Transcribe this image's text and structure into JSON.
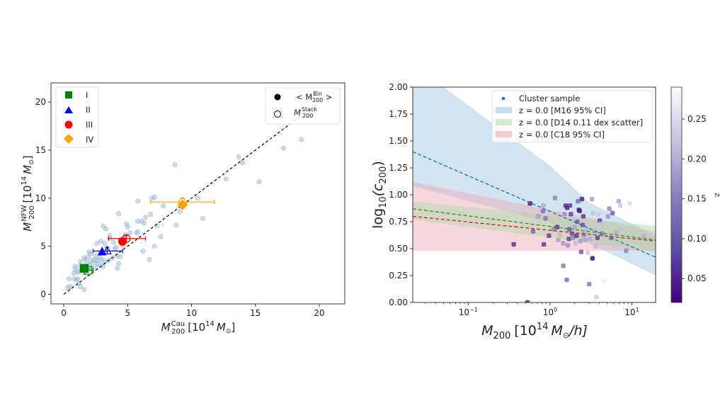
{
  "chart_data": [
    {
      "type": "scatter",
      "id": "mass-comparison",
      "xlabel": "M_200^Cau [10^14 M_sun]",
      "xlabel_parts": {
        "base": "M",
        "sup": "Cau",
        "sub": "200",
        "rest": "[10",
        "exp": "14",
        "unit": "M",
        "unit_sub": "⊙",
        "close": "]"
      },
      "ylabel": "M_200^NFW [10^14 M_sun]",
      "ylabel_parts": {
        "base": "M",
        "sup": "NFW",
        "sub": "200",
        "rest": "[10",
        "exp": "14",
        "unit": "M",
        "unit_sub": "⊙",
        "close": "]"
      },
      "xlim": [
        -1,
        22
      ],
      "ylim": [
        -1,
        22
      ],
      "xticks": [
        0,
        5,
        10,
        15,
        20
      ],
      "yticks": [
        0,
        5,
        10,
        15,
        20
      ],
      "xticklabels": [
        "0",
        "5",
        "10",
        "15",
        "20"
      ],
      "yticklabels": [
        "0",
        "5",
        "10",
        "15",
        "20"
      ],
      "grid": false,
      "one_to_one_line": {
        "x": [
          0,
          20
        ],
        "y": [
          0,
          20
        ],
        "style": "dashed",
        "color": "#000000"
      },
      "sample_color": "#9fbcd6",
      "sample_points": [
        [
          0.3,
          0.7
        ],
        [
          0.5,
          0.8
        ],
        [
          0.4,
          1.6
        ],
        [
          0.8,
          1.6
        ],
        [
          1.0,
          1.5
        ],
        [
          1.2,
          1.1
        ],
        [
          1.3,
          0.8
        ],
        [
          1.6,
          0.5
        ],
        [
          1.1,
          1.6
        ],
        [
          0.8,
          2.2
        ],
        [
          0.9,
          2.6
        ],
        [
          1.1,
          2.3
        ],
        [
          0.9,
          2.9
        ],
        [
          1.2,
          2.4
        ],
        [
          1.3,
          3.0
        ],
        [
          1.4,
          2.6
        ],
        [
          1.6,
          2.2
        ],
        [
          1.7,
          2.8
        ],
        [
          1.3,
          3.4
        ],
        [
          1.6,
          3.8
        ],
        [
          1.7,
          3.6
        ],
        [
          1.8,
          3.2
        ],
        [
          1.9,
          2.5
        ],
        [
          2.0,
          3.0
        ],
        [
          2.1,
          3.5
        ],
        [
          2.2,
          2.7
        ],
        [
          2.3,
          3.3
        ],
        [
          2.4,
          3.6
        ],
        [
          2.5,
          2.9
        ],
        [
          2.6,
          3.5
        ],
        [
          2.7,
          3.2
        ],
        [
          2.8,
          3.8
        ],
        [
          2.9,
          3.0
        ],
        [
          3.0,
          3.6
        ],
        [
          3.1,
          2.9
        ],
        [
          3.2,
          3.4
        ],
        [
          1.9,
          3.9
        ],
        [
          2.0,
          4.4
        ],
        [
          2.1,
          4.2
        ],
        [
          2.5,
          4.0
        ],
        [
          2.6,
          5.3
        ],
        [
          2.9,
          5.5
        ],
        [
          3.2,
          5.3
        ],
        [
          3.6,
          6.1
        ],
        [
          3.6,
          5.8
        ],
        [
          3.9,
          5.4
        ],
        [
          4.0,
          4.7
        ],
        [
          4.1,
          4.9
        ],
        [
          4.2,
          4.0
        ],
        [
          4.3,
          3.2
        ],
        [
          4.2,
          2.7
        ],
        [
          4.4,
          3.9
        ],
        [
          3.8,
          3.8
        ],
        [
          3.5,
          3.5
        ],
        [
          4.6,
          5.1
        ],
        [
          4.7,
          5.8
        ],
        [
          4.8,
          6.2
        ],
        [
          5.2,
          6.4
        ],
        [
          5.7,
          6.4
        ],
        [
          5.8,
          6.5
        ],
        [
          3.1,
          7.1
        ],
        [
          3.3,
          6.8
        ],
        [
          4.3,
          8.4
        ],
        [
          4.9,
          7.3
        ],
        [
          5.0,
          7.0
        ],
        [
          5.8,
          9.7
        ],
        [
          5.8,
          7.6
        ],
        [
          6.1,
          7.6
        ],
        [
          6.3,
          7.4
        ],
        [
          6.2,
          4.5
        ],
        [
          6.4,
          8.0
        ],
        [
          6.7,
          3.6
        ],
        [
          6.8,
          8.3
        ],
        [
          6.9,
          10.0
        ],
        [
          7.1,
          10.1
        ],
        [
          7.1,
          5.0
        ],
        [
          7.3,
          7.1
        ],
        [
          7.6,
          6.0
        ],
        [
          7.8,
          9.2
        ],
        [
          8.7,
          13.5
        ],
        [
          8.8,
          7.2
        ],
        [
          9.1,
          8.6
        ],
        [
          10.5,
          10.0
        ],
        [
          10.9,
          7.9
        ],
        [
          12.7,
          12.0
        ],
        [
          13.7,
          14.3
        ],
        [
          14.0,
          13.7
        ],
        [
          15.3,
          11.7
        ],
        [
          17.2,
          15.2
        ],
        [
          18.6,
          16.1
        ]
      ],
      "bins": [
        {
          "name": "I",
          "color": "#008000",
          "marker": "square",
          "bin_mean": {
            "x": 1.6,
            "y": 2.7
          },
          "stack": {
            "x": 1.9,
            "y": 2.5,
            "xerr": [
              0.3,
              0.4
            ],
            "yerr": [
              0.2,
              0.2
            ]
          }
        },
        {
          "name": "II",
          "color": "#0000ff",
          "marker": "triangle",
          "bin_mean": {
            "x": 3.0,
            "y": 4.4
          },
          "stack": {
            "x": 3.4,
            "y": 4.5,
            "xerr": [
              1.1,
              1.2
            ],
            "yerr": [
              0.3,
              0.4
            ]
          }
        },
        {
          "name": "III",
          "color": "#ff0000",
          "marker": "circle",
          "bin_mean": {
            "x": 4.6,
            "y": 5.5
          },
          "stack": {
            "x": 4.9,
            "y": 5.8,
            "xerr": [
              1.4,
              1.5
            ],
            "yerr": [
              0.3,
              0.3
            ]
          }
        },
        {
          "name": "IV",
          "color": "#ffa500",
          "marker": "diamond",
          "bin_mean": {
            "x": 9.3,
            "y": 9.3
          },
          "stack": {
            "x": 9.3,
            "y": 9.6,
            "xerr": [
              2.5,
              2.5
            ],
            "yerr": [
              0.3,
              0.4
            ]
          }
        }
      ],
      "legend_bins": {
        "position": "top-left",
        "entries": [
          "I",
          "II",
          "III",
          "IV"
        ]
      },
      "legend_markers": {
        "position": "top-right",
        "entries": [
          {
            "label_base": "< M",
            "sup": "Bin",
            "sub": "200",
            "suffix": " >",
            "style": "filled"
          },
          {
            "label_base": "M",
            "sup": "Stack",
            "sub": "200",
            "suffix": "",
            "style": "open"
          }
        ]
      }
    },
    {
      "type": "scatter",
      "id": "concentration-mass",
      "xscale": "log",
      "xlabel": "M_200 [10^14 M_sun/h]",
      "xlabel_parts": {
        "base": "M",
        "sub": "200",
        "rest": "[10",
        "exp": "14",
        "unit": "M",
        "unit_sub": "⊙",
        "close": "/h]"
      },
      "ylabel": "log10(c_200)",
      "ylabel_parts": {
        "base": "log",
        "sub1": "10",
        "open": "(c",
        "sub2": "200",
        "close": ")"
      },
      "xlim": [
        0.021,
        19.5
      ],
      "ylim": [
        0.0,
        2.0
      ],
      "xticks": [
        0.1,
        1,
        10
      ],
      "xticklabels": [
        {
          "b": "10",
          "e": "−1"
        },
        {
          "b": "10",
          "e": "0"
        },
        {
          "b": "10",
          "e": "1"
        }
      ],
      "yticks": [
        0.0,
        0.25,
        0.5,
        0.75,
        1.0,
        1.25,
        1.5,
        1.75,
        2.0
      ],
      "yticklabels": [
        "0.00",
        "0.25",
        "0.50",
        "0.75",
        "1.00",
        "1.25",
        "1.50",
        "1.75",
        "2.00"
      ],
      "grid": false,
      "legend": {
        "position": "top-right",
        "entries": [
          {
            "label": "Cluster sample",
            "kind": "marker",
            "color": "#1f77b4"
          },
          {
            "label": "z = 0.0 [M16 95% CI]",
            "kind": "band",
            "color": "#aecde6"
          },
          {
            "label": "z = 0.0 [D14 0.11 dex scatter]",
            "kind": "band",
            "color": "#bfe3bf"
          },
          {
            "label": "z = 0.0 [C18 95% CI]",
            "kind": "band",
            "color": "#f2b8c2"
          }
        ]
      },
      "bands": [
        {
          "name": "M16 95% CI",
          "color": "#b4d2e8",
          "opacity": 0.6,
          "x": [
            0.021,
            19.5
          ],
          "lower": [
            1.08,
            0.25
          ],
          "upper": [
            2.6,
            0.62
          ],
          "lower_mid": [
            [
              0.021,
              1.08
            ],
            [
              1.0,
              0.74
            ],
            [
              3.0,
              0.55
            ],
            [
              19.5,
              0.25
            ]
          ],
          "upper_mid": [
            [
              0.021,
              2.6
            ],
            [
              0.05,
              2.0
            ],
            [
              1.0,
              1.27
            ],
            [
              3.0,
              0.93
            ],
            [
              19.5,
              0.62
            ]
          ]
        },
        {
          "name": "C18 95% CI",
          "color": "#eda6b4",
          "opacity": 0.45,
          "x": [
            0.021,
            19.5
          ],
          "lower": [
            0.48,
            0.48
          ],
          "upper": [
            1.12,
            0.66
          ]
        },
        {
          "name": "D14 0.11 dex scatter",
          "color": "#a9d6a4",
          "opacity": 0.45,
          "x": [
            0.021,
            19.5
          ],
          "lower": [
            0.77,
            0.47
          ],
          "upper": [
            0.94,
            0.71
          ]
        }
      ],
      "lines": [
        {
          "name": "M16",
          "color": "#1f77b4",
          "style": "dashed",
          "x": [
            0.021,
            19.5
          ],
          "y": [
            1.4,
            0.42
          ]
        },
        {
          "name": "D14",
          "color": "#2ca02c",
          "style": "dashed",
          "x": [
            0.021,
            19.5
          ],
          "y": [
            0.87,
            0.58
          ]
        },
        {
          "name": "C18",
          "color": "#d62728",
          "style": "dashed",
          "x": [
            0.021,
            19.5
          ],
          "y": [
            0.8,
            0.57
          ]
        }
      ],
      "colorbar": {
        "label": "z",
        "range": [
          0.02,
          0.29
        ],
        "ticks": [
          0.05,
          0.1,
          0.15,
          0.2,
          0.25
        ],
        "ticklabels": [
          "0.05",
          "0.10",
          "0.15",
          "0.20",
          "0.25"
        ],
        "cmap_low": "#3f007d",
        "cmap_mid": "#9e9ac8",
        "cmap_high": "#fcfbfd"
      },
      "points": [
        {
          "m": 0.53,
          "c": 0.0,
          "z": 0.05
        },
        {
          "m": 0.36,
          "c": 0.54,
          "z": 0.06
        },
        {
          "m": 0.57,
          "c": 0.92,
          "z": 0.04
        },
        {
          "m": 0.62,
          "c": 0.66,
          "z": 0.11
        },
        {
          "m": 0.72,
          "c": 0.8,
          "z": 0.16
        },
        {
          "m": 0.83,
          "c": 0.9,
          "z": 0.18
        },
        {
          "m": 0.82,
          "c": 0.85,
          "z": 0.12
        },
        {
          "m": 0.84,
          "c": 0.54,
          "z": 0.07
        },
        {
          "m": 0.88,
          "c": 0.78,
          "z": 0.12
        },
        {
          "m": 0.97,
          "c": 0.62,
          "z": 0.08
        },
        {
          "m": 1.1,
          "c": 0.68,
          "z": 0.14
        },
        {
          "m": 1.15,
          "c": 0.97,
          "z": 0.14
        },
        {
          "m": 1.22,
          "c": 0.7,
          "z": 0.06
        },
        {
          "m": 1.26,
          "c": 0.58,
          "z": 0.17
        },
        {
          "m": 1.32,
          "c": 0.63,
          "z": 0.2
        },
        {
          "m": 1.45,
          "c": 0.34,
          "z": 0.13
        },
        {
          "m": 1.45,
          "c": 0.55,
          "z": 0.16
        },
        {
          "m": 1.5,
          "c": 0.82,
          "z": 0.15
        },
        {
          "m": 1.55,
          "c": 0.9,
          "z": 0.07
        },
        {
          "m": 1.6,
          "c": 0.21,
          "z": 0.12
        },
        {
          "m": 1.62,
          "c": 0.88,
          "z": 0.05
        },
        {
          "m": 1.65,
          "c": 0.53,
          "z": 0.15
        },
        {
          "m": 1.7,
          "c": 0.59,
          "z": 0.08
        },
        {
          "m": 1.72,
          "c": 0.68,
          "z": 0.1
        },
        {
          "m": 1.75,
          "c": 0.9,
          "z": 0.07
        },
        {
          "m": 1.8,
          "c": 0.82,
          "z": 0.08
        },
        {
          "m": 1.85,
          "c": 0.64,
          "z": 0.09
        },
        {
          "m": 1.9,
          "c": 0.6,
          "z": 0.14
        },
        {
          "m": 2.0,
          "c": 0.7,
          "z": 0.17
        },
        {
          "m": 2.05,
          "c": 0.55,
          "z": 0.2
        },
        {
          "m": 2.1,
          "c": 0.62,
          "z": 0.07
        },
        {
          "m": 2.15,
          "c": 0.75,
          "z": 0.1
        },
        {
          "m": 2.2,
          "c": 0.94,
          "z": 0.12
        },
        {
          "m": 2.25,
          "c": 0.86,
          "z": 0.04
        },
        {
          "m": 2.3,
          "c": 0.85,
          "z": 0.05
        },
        {
          "m": 2.35,
          "c": 0.57,
          "z": 0.16
        },
        {
          "m": 2.4,
          "c": 0.47,
          "z": 0.1
        },
        {
          "m": 2.45,
          "c": 0.96,
          "z": 0.05
        },
        {
          "m": 2.5,
          "c": 0.72,
          "z": 0.09
        },
        {
          "m": 2.55,
          "c": 0.8,
          "z": 0.07
        },
        {
          "m": 2.6,
          "c": 0.63,
          "z": 0.13
        },
        {
          "m": 2.7,
          "c": 0.58,
          "z": 0.17
        },
        {
          "m": 2.8,
          "c": 0.66,
          "z": 0.2
        },
        {
          "m": 2.9,
          "c": 0.46,
          "z": 0.22
        },
        {
          "m": 3.0,
          "c": 0.17,
          "z": 0.13
        },
        {
          "m": 3.1,
          "c": 0.59,
          "z": 0.18
        },
        {
          "m": 3.25,
          "c": 0.96,
          "z": 0.16
        },
        {
          "m": 3.3,
          "c": 0.41,
          "z": 0.03
        },
        {
          "m": 3.35,
          "c": 0.83,
          "z": 0.21
        },
        {
          "m": 3.5,
          "c": 0.68,
          "z": 0.21
        },
        {
          "m": 3.6,
          "c": 0.52,
          "z": 0.2
        },
        {
          "m": 3.7,
          "c": 0.05,
          "z": 0.22
        },
        {
          "m": 3.8,
          "c": 0.6,
          "z": 0.08
        },
        {
          "m": 3.9,
          "c": 0.82,
          "z": 0.22
        },
        {
          "m": 4.05,
          "c": 0.76,
          "z": 0.07
        },
        {
          "m": 4.15,
          "c": 0.73,
          "z": 0.21
        },
        {
          "m": 4.3,
          "c": 0.64,
          "z": 0.14
        },
        {
          "m": 4.6,
          "c": 0.2,
          "z": 0.27
        },
        {
          "m": 5.1,
          "c": 0.8,
          "z": 0.15
        },
        {
          "m": 5.3,
          "c": 0.87,
          "z": 0.14
        },
        {
          "m": 5.6,
          "c": 0.6,
          "z": 0.12
        },
        {
          "m": 5.8,
          "c": 0.83,
          "z": 0.1
        },
        {
          "m": 6.4,
          "c": 0.65,
          "z": 0.18
        },
        {
          "m": 6.9,
          "c": 0.94,
          "z": 0.18
        },
        {
          "m": 7.2,
          "c": 0.9,
          "z": 0.22
        },
        {
          "m": 8.5,
          "c": 0.48,
          "z": 0.14
        },
        {
          "m": 9.4,
          "c": 0.92,
          "z": 0.24
        },
        {
          "m": 14.0,
          "c": 0.62,
          "z": 0.19
        }
      ]
    }
  ]
}
